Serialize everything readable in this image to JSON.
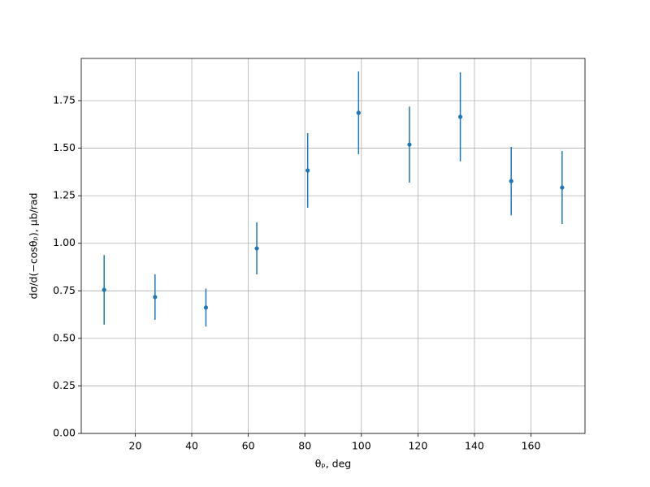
{
  "chart_data": {
    "type": "errorbar",
    "xlabel": "θₚ, deg",
    "ylabel": "dσ/d(−cosθₚ), μb/rad",
    "x": [
      9,
      27,
      45,
      63,
      81,
      99,
      117,
      135,
      153,
      171
    ],
    "series": [
      {
        "color": "#1f77b4",
        "values": [
          0.755,
          0.717,
          0.662,
          0.973,
          1.383,
          1.686,
          1.519,
          1.665,
          1.327,
          1.293
        ],
        "errors": [
          0.183,
          0.12,
          0.1,
          0.137,
          0.196,
          0.218,
          0.2,
          0.234,
          0.18,
          0.192
        ]
      }
    ],
    "xlim": [
      0.9,
      179.1
    ],
    "ylim": [
      0,
      1.972
    ],
    "xticks": [
      20,
      40,
      60,
      80,
      100,
      120,
      140,
      160
    ],
    "yticks": [
      {
        "value": 0,
        "label": "0.00"
      },
      {
        "value": 0.25,
        "label": "0.25"
      },
      {
        "value": 0.5,
        "label": "0.50"
      },
      {
        "value": 0.75,
        "label": "0.75"
      },
      {
        "value": 1,
        "label": "1.00"
      },
      {
        "value": 1.25,
        "label": "1.25"
      },
      {
        "value": 1.5,
        "label": "1.50"
      },
      {
        "value": 1.75,
        "label": "1.75"
      }
    ],
    "grid": true
  }
}
